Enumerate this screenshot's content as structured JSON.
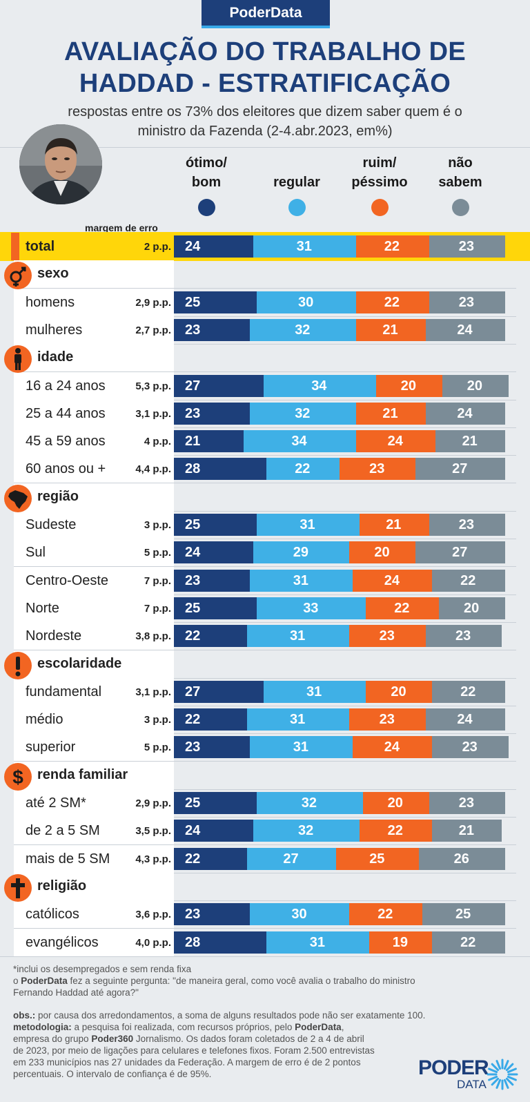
{
  "brand": "PoderData",
  "title_line1": "AVALIAÇÃO DO TRABALHO DE",
  "title_line2": "HADDAD - ESTRATIFICAÇÃO",
  "subtitle_line1": "respostas entre os 73% dos eleitores que dizem saber quem é o",
  "subtitle_line2": "ministro da Fazenda (2-4.abr.2023, em%)",
  "legend": [
    {
      "line1": "ótimo/",
      "line2": "bom",
      "color": "#1d3f7a"
    },
    {
      "line1": "",
      "line2": "regular",
      "color": "#3fb0e6"
    },
    {
      "line1": "ruim/",
      "line2": "péssimo",
      "color": "#f26522"
    },
    {
      "line1": "não",
      "line2": "sabem",
      "color": "#7b8c97"
    }
  ],
  "moe_header": "margem de erro",
  "chart_data": {
    "type": "bar",
    "orientation": "horizontal",
    "stacked": true,
    "series_names": [
      "ótimo/bom",
      "regular",
      "ruim/péssimo",
      "não sabem"
    ],
    "series_colors": [
      "#1d3f7a",
      "#3fb0e6",
      "#f26522",
      "#7b8c97"
    ],
    "unit": "%",
    "groups": [
      {
        "name": "",
        "icon": "",
        "rows": [
          {
            "label": "total",
            "moe": "2 p.p.",
            "values": [
              24,
              31,
              22,
              23
            ]
          }
        ]
      },
      {
        "name": "sexo",
        "icon": "gender-icon",
        "rows": [
          {
            "label": "homens",
            "moe": "2,9 p.p.",
            "values": [
              25,
              30,
              22,
              23
            ]
          },
          {
            "label": "mulheres",
            "moe": "2,7 p.p.",
            "values": [
              23,
              32,
              21,
              24
            ]
          }
        ]
      },
      {
        "name": "idade",
        "icon": "person-icon",
        "rows": [
          {
            "label": "16 a 24 anos",
            "moe": "5,3 p.p.",
            "values": [
              27,
              34,
              20,
              20
            ]
          },
          {
            "label": "25 a 44 anos",
            "moe": "3,1 p.p.",
            "values": [
              23,
              32,
              21,
              24
            ]
          },
          {
            "label": "45 a 59 anos",
            "moe": "4 p.p.",
            "values": [
              21,
              34,
              24,
              21
            ]
          },
          {
            "label": "60 anos ou +",
            "moe": "4,4 p.p.",
            "values": [
              28,
              22,
              23,
              27
            ]
          }
        ]
      },
      {
        "name": "região",
        "icon": "brazil-map-icon",
        "rows": [
          {
            "label": "Sudeste",
            "moe": "3 p.p.",
            "values": [
              25,
              31,
              21,
              23
            ]
          },
          {
            "label": "Sul",
            "moe": "5 p.p.",
            "values": [
              24,
              29,
              20,
              27
            ]
          },
          {
            "label": "Centro-Oeste",
            "moe": "7 p.p.",
            "values": [
              23,
              31,
              24,
              22
            ]
          },
          {
            "label": "Norte",
            "moe": "7 p.p.",
            "values": [
              25,
              33,
              22,
              20
            ]
          },
          {
            "label": "Nordeste",
            "moe": "3,8 p.p.",
            "values": [
              22,
              31,
              23,
              23
            ]
          }
        ]
      },
      {
        "name": "escolaridade",
        "icon": "exclamation-icon",
        "rows": [
          {
            "label": "fundamental",
            "moe": "3,1 p.p.",
            "values": [
              27,
              31,
              20,
              22
            ]
          },
          {
            "label": "médio",
            "moe": "3 p.p.",
            "values": [
              22,
              31,
              23,
              24
            ]
          },
          {
            "label": "superior",
            "moe": "5 p.p.",
            "values": [
              23,
              31,
              24,
              23
            ]
          }
        ]
      },
      {
        "name": "renda familiar",
        "icon": "dollar-icon",
        "rows": [
          {
            "label": "até 2 SM*",
            "moe": "2,9 p.p.",
            "values": [
              25,
              32,
              20,
              23
            ]
          },
          {
            "label": "de 2 a 5 SM",
            "moe": "3,5 p.p.",
            "values": [
              24,
              32,
              22,
              21
            ]
          },
          {
            "label": "mais de 5 SM",
            "moe": "4,3 p.p.",
            "values": [
              22,
              27,
              25,
              26
            ]
          }
        ]
      },
      {
        "name": "religião",
        "icon": "cross-icon",
        "rows": [
          {
            "label": "católicos",
            "moe": "3,6 p.p.",
            "values": [
              23,
              30,
              22,
              25
            ]
          },
          {
            "label": "evangélicos",
            "moe": "4,0 p.p.",
            "values": [
              28,
              31,
              19,
              22
            ]
          }
        ]
      }
    ]
  },
  "footer": {
    "footnote": "*inclui os desempregados e sem renda fixa",
    "question_pre": "o ",
    "question_brand": "PoderData",
    "question_line1": " fez a seguinte pergunta: \"de maneira geral, como você avalia o trabalho do ministro",
    "question_line2": "Fernando Haddad até agora?\"",
    "obs_label": "obs.:",
    "obs_text": " por causa dos arredondamentos, a soma de alguns resultados pode não ser exatamente 100.",
    "method_label": "metodologia:",
    "method_text1": " a pesquisa foi realizada, com recursos próprios, pelo ",
    "method_brand": "PoderData",
    "method_text2": ",",
    "method_line2a": "empresa do grupo ",
    "method_line2b": "Poder360",
    "method_line2c": " Jornalismo. Os dados foram coletados de 2 a 4 de abril",
    "method_line3": "de 2023, por meio de ligações para celulares e telefones fixos. Foram 2.500 entrevistas",
    "method_line4": "em 233 municípios nas 27 unidades da Federação. A margem de erro é de 2 pontos",
    "method_line5": "percentuais. O intervalo de confiança é de 95%."
  },
  "logo": {
    "word1": "PODER",
    "word2": "DATA"
  }
}
